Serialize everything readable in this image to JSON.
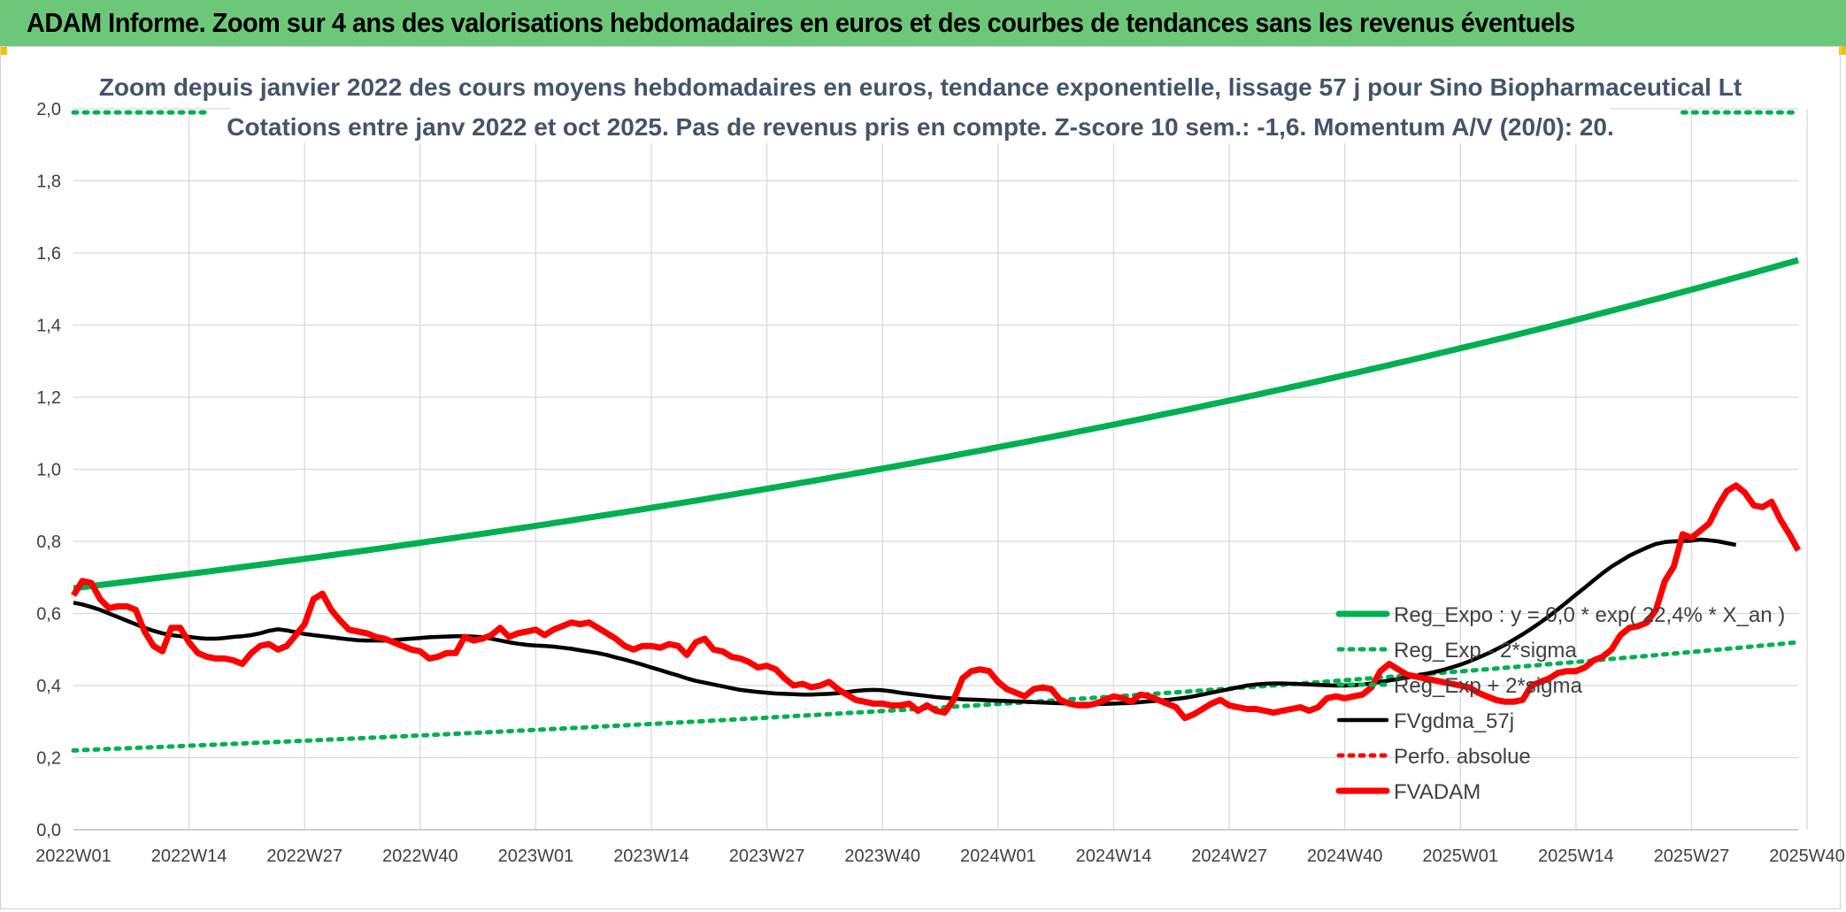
{
  "banner": {
    "title": "ADAM Informe. Zoom sur 4 ans des valorisations hebdomadaires en euros et des courbes de tendances sans les revenus éventuels"
  },
  "colors": {
    "banner_bg": "#6cc878",
    "reg_expo": "#00b050",
    "fv_gdma": "#000000",
    "fvadam": "#ff0000",
    "perfo": "#ff0000"
  },
  "chart_data": {
    "type": "line",
    "title": "Zoom depuis janvier 2022 des cours moyens hebdomadaires en euros, tendance exponentielle, lissage 57 j pour Sino Biopharmaceutical Lt",
    "subtitle": "Cotations entre janv 2022 et oct 2025. Pas de revenus pris en compte. Z-score 10 sem.: -1,6. Momentum A/V (20/0): 20.",
    "xlabel": "",
    "ylabel": "",
    "ylim": [
      0,
      2
    ],
    "yticks": [
      "0,0",
      "0,2",
      "0,4",
      "0,6",
      "0,8",
      "1,0",
      "1,2",
      "1,4",
      "1,6",
      "1,8",
      "2,0"
    ],
    "xticks": [
      "2022W01",
      "2022W14",
      "2022W27",
      "2022W40",
      "2023W01",
      "2023W14",
      "2023W27",
      "2023W40",
      "2024W01",
      "2024W14",
      "2024W27",
      "2024W40",
      "2025W01",
      "2025W14",
      "2025W27",
      "2025W40"
    ],
    "grid": true,
    "legend_position": "bottom-right",
    "series": [
      {
        "name": "Reg_Expo : y = 0,0 * exp( 22,4% * X_an )",
        "style": "solid",
        "start": 0.67,
        "end": 1.58
      },
      {
        "name": "Reg_Exp - 2*sigma",
        "style": "dotted",
        "start": 0.22,
        "end": 0.52
      },
      {
        "name": "Reg_Exp + 2*sigma",
        "style": "dotted",
        "start": 1.99,
        "end": 1.99,
        "visible_ranges": [
          [
            0,
            16
          ],
          [
            181,
            195
          ]
        ]
      },
      {
        "name": "FVgdma_57j",
        "style": "solid",
        "values": [
          0.63,
          0.625,
          0.618,
          0.61,
          0.6,
          0.59,
          0.58,
          0.57,
          0.56,
          0.552,
          0.545,
          0.54,
          0.537,
          0.535,
          0.532,
          0.53,
          0.53,
          0.532,
          0.535,
          0.537,
          0.54,
          0.545,
          0.552,
          0.556,
          0.553,
          0.548,
          0.543,
          0.54,
          0.537,
          0.534,
          0.531,
          0.528,
          0.526,
          0.525,
          0.525,
          0.525,
          0.526,
          0.528,
          0.53,
          0.532,
          0.534,
          0.535,
          0.536,
          0.537,
          0.537,
          0.536,
          0.534,
          0.53,
          0.525,
          0.52,
          0.516,
          0.513,
          0.511,
          0.51,
          0.508,
          0.505,
          0.502,
          0.498,
          0.494,
          0.49,
          0.485,
          0.478,
          0.472,
          0.465,
          0.458,
          0.45,
          0.443,
          0.435,
          0.428,
          0.42,
          0.413,
          0.408,
          0.403,
          0.398,
          0.393,
          0.388,
          0.385,
          0.382,
          0.38,
          0.378,
          0.377,
          0.376,
          0.375,
          0.375,
          0.376,
          0.377,
          0.379,
          0.382,
          0.385,
          0.387,
          0.388,
          0.387,
          0.384,
          0.38,
          0.377,
          0.374,
          0.371,
          0.368,
          0.366,
          0.364,
          0.362,
          0.361,
          0.36,
          0.359,
          0.358,
          0.357,
          0.356,
          0.355,
          0.354,
          0.353,
          0.352,
          0.351,
          0.35,
          0.349,
          0.349,
          0.349,
          0.349,
          0.35,
          0.351,
          0.352,
          0.354,
          0.356,
          0.358,
          0.36,
          0.363,
          0.366,
          0.37,
          0.375,
          0.38,
          0.385,
          0.39,
          0.395,
          0.4,
          0.403,
          0.405,
          0.406,
          0.406,
          0.405,
          0.404,
          0.403,
          0.402,
          0.401,
          0.4,
          0.4,
          0.401,
          0.403,
          0.406,
          0.41,
          0.414,
          0.418,
          0.422,
          0.427,
          0.432,
          0.437,
          0.443,
          0.45,
          0.458,
          0.467,
          0.477,
          0.488,
          0.5,
          0.513,
          0.527,
          0.542,
          0.558,
          0.575,
          0.593,
          0.612,
          0.632,
          0.652,
          0.672,
          0.692,
          0.712,
          0.73,
          0.745,
          0.76,
          0.772,
          0.783,
          0.793,
          0.798,
          0.8,
          0.801,
          0.802,
          0.805,
          0.803,
          0.8,
          0.795,
          0.79
        ]
      },
      {
        "name": "Perfo. absolue",
        "style": "dotted",
        "values": []
      },
      {
        "name": "FVADAM",
        "style": "solid",
        "values": [
          0.65,
          0.69,
          0.685,
          0.64,
          0.615,
          0.62,
          0.62,
          0.61,
          0.55,
          0.51,
          0.495,
          0.56,
          0.56,
          0.52,
          0.49,
          0.48,
          0.475,
          0.475,
          0.47,
          0.46,
          0.49,
          0.51,
          0.515,
          0.5,
          0.51,
          0.54,
          0.57,
          0.64,
          0.655,
          0.61,
          0.58,
          0.555,
          0.55,
          0.545,
          0.535,
          0.53,
          0.52,
          0.51,
          0.5,
          0.495,
          0.475,
          0.48,
          0.49,
          0.49,
          0.535,
          0.525,
          0.53,
          0.54,
          0.56,
          0.535,
          0.545,
          0.55,
          0.555,
          0.54,
          0.555,
          0.565,
          0.575,
          0.57,
          0.575,
          0.56,
          0.545,
          0.53,
          0.51,
          0.5,
          0.51,
          0.51,
          0.505,
          0.515,
          0.51,
          0.485,
          0.52,
          0.53,
          0.5,
          0.495,
          0.48,
          0.475,
          0.465,
          0.45,
          0.455,
          0.445,
          0.42,
          0.4,
          0.405,
          0.395,
          0.4,
          0.41,
          0.39,
          0.375,
          0.36,
          0.355,
          0.35,
          0.35,
          0.345,
          0.345,
          0.35,
          0.33,
          0.345,
          0.33,
          0.325,
          0.36,
          0.42,
          0.44,
          0.445,
          0.44,
          0.41,
          0.39,
          0.38,
          0.37,
          0.39,
          0.395,
          0.39,
          0.36,
          0.35,
          0.345,
          0.345,
          0.35,
          0.36,
          0.37,
          0.365,
          0.355,
          0.375,
          0.37,
          0.36,
          0.35,
          0.34,
          0.31,
          0.32,
          0.335,
          0.35,
          0.36,
          0.345,
          0.34,
          0.335,
          0.335,
          0.33,
          0.325,
          0.33,
          0.335,
          0.34,
          0.33,
          0.34,
          0.365,
          0.37,
          0.365,
          0.37,
          0.375,
          0.395,
          0.44,
          0.46,
          0.445,
          0.43,
          0.425,
          0.42,
          0.415,
          0.41,
          0.405,
          0.4,
          0.395,
          0.38,
          0.37,
          0.36,
          0.355,
          0.355,
          0.36,
          0.4,
          0.41,
          0.42,
          0.435,
          0.44,
          0.44,
          0.45,
          0.47,
          0.48,
          0.5,
          0.54,
          0.56,
          0.565,
          0.575,
          0.61,
          0.69,
          0.73,
          0.82,
          0.81,
          0.83,
          0.85,
          0.9,
          0.94,
          0.955,
          0.935,
          0.9,
          0.895,
          0.91,
          0.86,
          0.82,
          0.775
        ]
      }
    ]
  }
}
